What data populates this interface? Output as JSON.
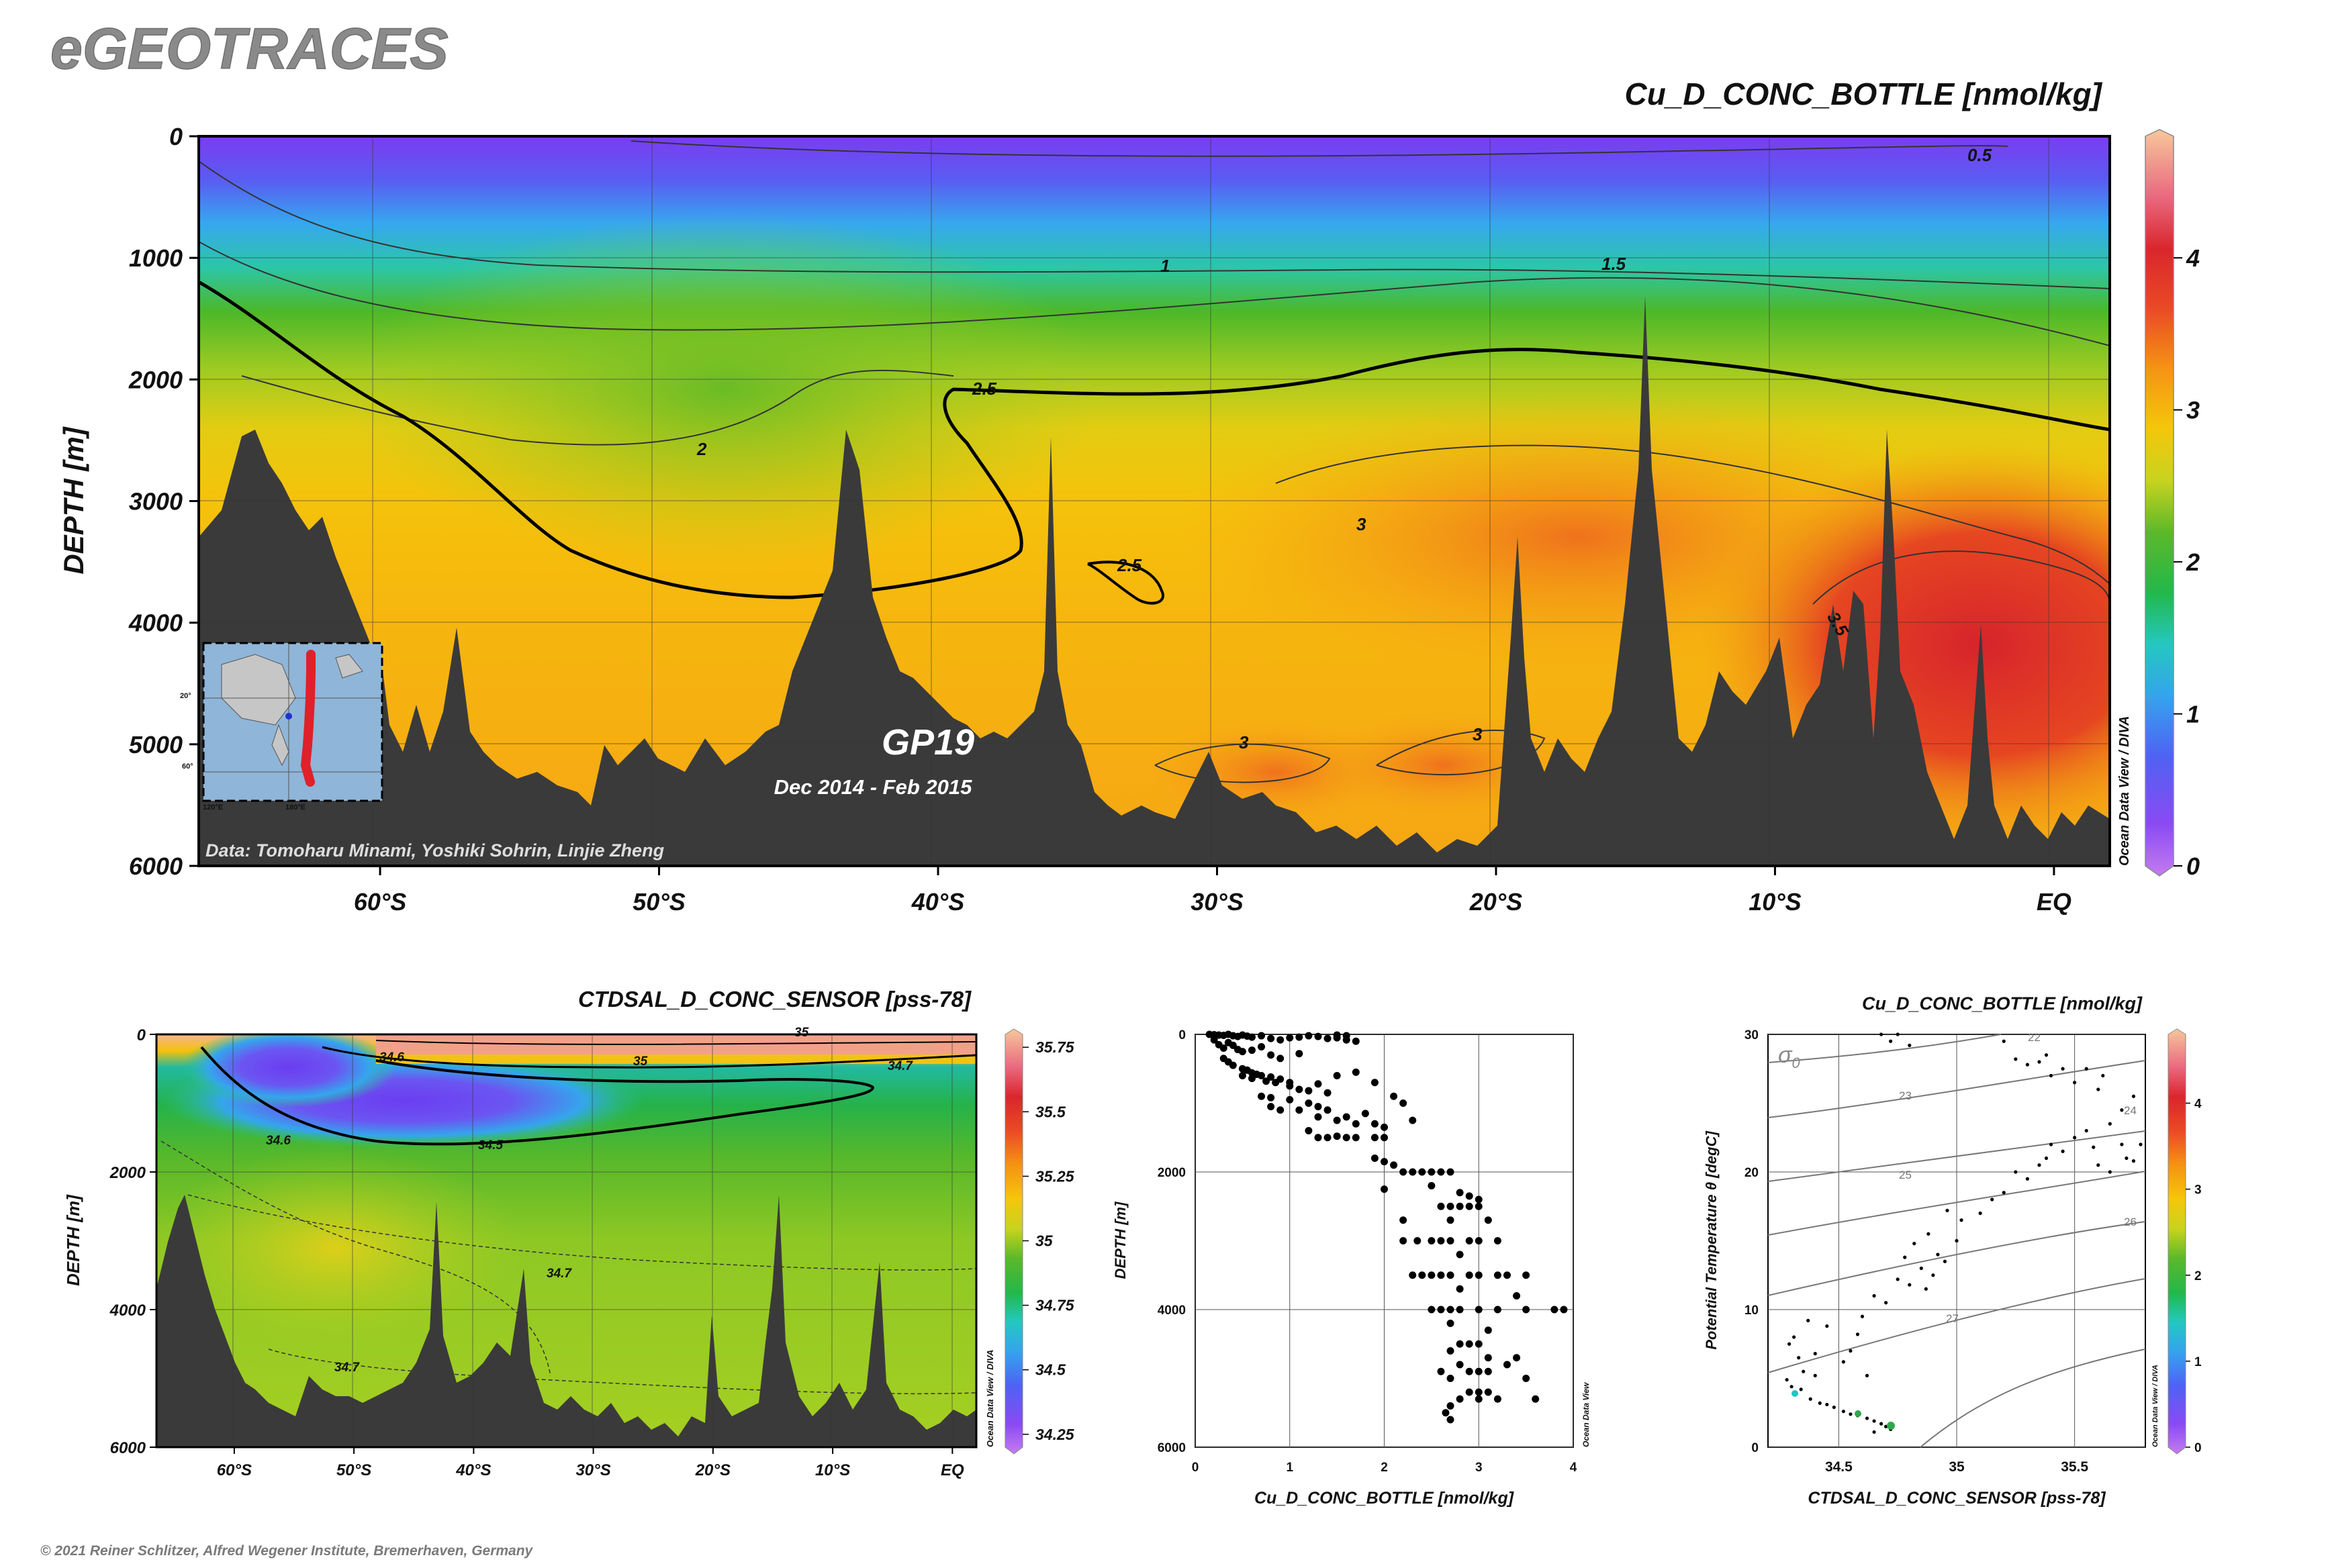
{
  "logo_text": "eGEOTRACES",
  "copyright": "© 2021 Reiner Schlitzer, Alfred Wegener Institute, Bremerhaven, Germany",
  "odv_label": "Ocean Data View / DIVA",
  "odv_label_short": "Ocean Data View",
  "colorscale": [
    "#c47cf0",
    "#8a4af2",
    "#5b5cf2",
    "#3d8ef5",
    "#27c4e8",
    "#22c98e",
    "#2fb52a",
    "#7ccb2a",
    "#d9d21e",
    "#f5c70b",
    "#f89a14",
    "#ee5a23",
    "#d9262d",
    "#e9697f",
    "#f3a08c",
    "#f7c79b"
  ],
  "chart_data": [
    {
      "type": "heatmap",
      "title": "Cu_D_CONC_BOTTLE [nmol/kg]",
      "ylabel": "DEPTH [m]",
      "xlabel": "",
      "x_ticks": [
        "60°S",
        "50°S",
        "40°S",
        "30°S",
        "20°S",
        "10°S",
        "EQ"
      ],
      "x_tick_values": [
        -60,
        -50,
        -40,
        -30,
        -20,
        -10,
        0
      ],
      "xlim": [
        -66.5,
        2
      ],
      "y_ticks": [
        "0",
        "1000",
        "2000",
        "3000",
        "4000",
        "5000",
        "6000"
      ],
      "ylim": [
        0,
        6000
      ],
      "colorbar_ticks": [
        "0",
        "1",
        "2",
        "3",
        "4"
      ],
      "colorbar_range": [
        0,
        4.8
      ],
      "contour_labels": [
        "0.5",
        "1",
        "1.5",
        "2",
        "2.5",
        "2.5",
        "3",
        "3",
        "3",
        "3.5"
      ],
      "section_label": "GP19",
      "section_dates": "Dec 2014 - Feb 2015",
      "data_credit": "Data: Tomoharu Minami, Yoshiki Sohrin, Linjie Zheng",
      "inset_map_labels": [
        "20°",
        "60°",
        "120°E",
        "180°E"
      ]
    },
    {
      "type": "heatmap",
      "title": "CTDSAL_D_CONC_SENSOR [pss-78]",
      "ylabel": "DEPTH [m]",
      "x_ticks": [
        "60°S",
        "50°S",
        "40°S",
        "30°S",
        "20°S",
        "10°S",
        "EQ"
      ],
      "x_tick_values": [
        -60,
        -50,
        -40,
        -30,
        -20,
        -10,
        0
      ],
      "xlim": [
        -66.5,
        2
      ],
      "y_ticks": [
        "0",
        "2000",
        "4000",
        "6000"
      ],
      "ylim": [
        0,
        6000
      ],
      "colorbar_ticks": [
        "34.25",
        "34.5",
        "34.75",
        "35",
        "35.25",
        "35.5",
        "35.75"
      ],
      "colorbar_range": [
        34.2,
        35.8
      ],
      "contour_labels": [
        "34.6",
        "34.5",
        "34.6",
        "34.7",
        "34.7",
        "35",
        "34.7",
        "35"
      ]
    },
    {
      "type": "scatter",
      "xlabel": "Cu_D_CONC_BOTTLE [nmol/kg]",
      "ylabel": "DEPTH [m]",
      "x_ticks": [
        "0",
        "1",
        "2",
        "3",
        "4"
      ],
      "y_ticks": [
        "0",
        "2000",
        "4000",
        "6000"
      ],
      "xlim": [
        0,
        4
      ],
      "ylim": [
        0,
        6000
      ],
      "points": [
        [
          0.15,
          0
        ],
        [
          0.2,
          5
        ],
        [
          0.25,
          10
        ],
        [
          0.3,
          15
        ],
        [
          0.35,
          0
        ],
        [
          0.4,
          20
        ],
        [
          0.45,
          30
        ],
        [
          0.5,
          10
        ],
        [
          0.55,
          25
        ],
        [
          0.6,
          40
        ],
        [
          0.7,
          20
        ],
        [
          0.8,
          60
        ],
        [
          0.9,
          80
        ],
        [
          1.0,
          50
        ],
        [
          1.1,
          40
        ],
        [
          1.2,
          20
        ],
        [
          1.3,
          30
        ],
        [
          1.4,
          60
        ],
        [
          1.5,
          50
        ],
        [
          1.6,
          80
        ],
        [
          1.7,
          100
        ],
        [
          1.5,
          10
        ],
        [
          1.6,
          20
        ],
        [
          0.2,
          80
        ],
        [
          0.25,
          150
        ],
        [
          0.3,
          200
        ],
        [
          0.35,
          120
        ],
        [
          0.4,
          160
        ],
        [
          0.45,
          220
        ],
        [
          0.5,
          250
        ],
        [
          0.6,
          230
        ],
        [
          0.7,
          180
        ],
        [
          0.8,
          300
        ],
        [
          0.9,
          350
        ],
        [
          1.1,
          280
        ],
        [
          0.3,
          350
        ],
        [
          0.35,
          400
        ],
        [
          0.4,
          450
        ],
        [
          0.5,
          500
        ],
        [
          0.55,
          520
        ],
        [
          0.6,
          560
        ],
        [
          0.65,
          580
        ],
        [
          0.7,
          600
        ],
        [
          0.8,
          620
        ],
        [
          0.9,
          650
        ],
        [
          1.0,
          700
        ],
        [
          1.3,
          720
        ],
        [
          1.5,
          600
        ],
        [
          1.7,
          550
        ],
        [
          1.9,
          700
        ],
        [
          2.1,
          900
        ],
        [
          2.2,
          1000
        ],
        [
          0.5,
          600
        ],
        [
          0.6,
          640
        ],
        [
          0.75,
          680
        ],
        [
          0.85,
          700
        ],
        [
          1.0,
          750
        ],
        [
          1.1,
          800
        ],
        [
          1.2,
          820
        ],
        [
          1.4,
          850
        ],
        [
          0.7,
          900
        ],
        [
          0.8,
          920
        ],
        [
          1.0,
          950
        ],
        [
          1.2,
          1000
        ],
        [
          1.3,
          1050
        ],
        [
          1.4,
          1100
        ],
        [
          1.6,
          1200
        ],
        [
          1.8,
          1150
        ],
        [
          1.9,
          1300
        ],
        [
          0.8,
          1050
        ],
        [
          0.9,
          1100
        ],
        [
          1.1,
          1100
        ],
        [
          1.3,
          1200
        ],
        [
          1.5,
          1250
        ],
        [
          1.7,
          1300
        ],
        [
          2.0,
          1350
        ],
        [
          2.3,
          1250
        ],
        [
          1.3,
          1500
        ],
        [
          1.4,
          1500
        ],
        [
          1.6,
          1500
        ],
        [
          1.7,
          1500
        ],
        [
          1.9,
          1500
        ],
        [
          2.0,
          1500
        ],
        [
          1.2,
          1400
        ],
        [
          1.5,
          1480
        ],
        [
          1.9,
          1800
        ],
        [
          2.0,
          1850
        ],
        [
          2.1,
          1900
        ],
        [
          2.2,
          2000
        ],
        [
          2.3,
          2000
        ],
        [
          2.4,
          2000
        ],
        [
          2.5,
          2000
        ],
        [
          2.6,
          2000
        ],
        [
          2.7,
          2000
        ],
        [
          2.5,
          2200
        ],
        [
          2.0,
          2250
        ],
        [
          2.8,
          2300
        ],
        [
          2.9,
          2350
        ],
        [
          3.0,
          2400
        ],
        [
          2.6,
          2500
        ],
        [
          2.7,
          2500
        ],
        [
          2.8,
          2500
        ],
        [
          2.9,
          2500
        ],
        [
          3.0,
          2500
        ],
        [
          2.7,
          2700
        ],
        [
          2.2,
          2700
        ],
        [
          3.1,
          2700
        ],
        [
          2.2,
          3000
        ],
        [
          2.35,
          3000
        ],
        [
          2.5,
          3000
        ],
        [
          2.6,
          3000
        ],
        [
          2.7,
          3000
        ],
        [
          2.9,
          3000
        ],
        [
          3.0,
          3000
        ],
        [
          3.2,
          3000
        ],
        [
          2.8,
          3200
        ],
        [
          2.3,
          3500
        ],
        [
          2.4,
          3500
        ],
        [
          2.5,
          3500
        ],
        [
          2.6,
          3500
        ],
        [
          2.7,
          3500
        ],
        [
          2.9,
          3500
        ],
        [
          3.0,
          3500
        ],
        [
          3.2,
          3500
        ],
        [
          3.3,
          3500
        ],
        [
          3.5,
          3500
        ],
        [
          2.8,
          3700
        ],
        [
          3.4,
          3800
        ],
        [
          2.5,
          4000
        ],
        [
          2.6,
          4000
        ],
        [
          2.7,
          4000
        ],
        [
          2.8,
          4000
        ],
        [
          3.0,
          4000
        ],
        [
          3.2,
          4000
        ],
        [
          3.5,
          4000
        ],
        [
          3.8,
          4000
        ],
        [
          3.9,
          4000
        ],
        [
          2.7,
          4200
        ],
        [
          3.1,
          4300
        ],
        [
          2.8,
          4500
        ],
        [
          2.9,
          4500
        ],
        [
          3.0,
          4500
        ],
        [
          2.7,
          4600
        ],
        [
          3.1,
          4700
        ],
        [
          3.4,
          4700
        ],
        [
          2.8,
          4800
        ],
        [
          3.3,
          4800
        ],
        [
          2.6,
          4900
        ],
        [
          2.9,
          4900
        ],
        [
          3.0,
          4900
        ],
        [
          3.1,
          4900
        ],
        [
          2.7,
          5000
        ],
        [
          3.5,
          5000
        ],
        [
          2.9,
          5200
        ],
        [
          3.0,
          5200
        ],
        [
          3.1,
          5200
        ],
        [
          2.8,
          5300
        ],
        [
          3.0,
          5300
        ],
        [
          3.2,
          5300
        ],
        [
          2.7,
          5400
        ],
        [
          3.6,
          5300
        ],
        [
          2.65,
          5500
        ],
        [
          2.7,
          5600
        ]
      ]
    },
    {
      "type": "scatter",
      "title": "Cu_D_CONC_BOTTLE [nmol/kg]",
      "xlabel": "CTDSAL_D_CONC_SENSOR [pss-78]",
      "ylabel": "Potential Temperature θ [degC]",
      "x_ticks": [
        "34.5",
        "35",
        "35.5"
      ],
      "y_ticks": [
        "0",
        "10",
        "20",
        "30"
      ],
      "xlim": [
        34.2,
        35.8
      ],
      "ylim": [
        0,
        30
      ],
      "isopycnal_symbol": "σ",
      "isopycnal_sub": "0",
      "isopycnal_labels": [
        "22",
        "23",
        "24",
        "25",
        "26",
        "27"
      ],
      "colorbar_ticks": [
        "0",
        "1",
        "2",
        "3",
        "4"
      ],
      "colorbar_range": [
        0,
        4.8
      ],
      "points": [
        [
          34.31,
          8
        ],
        [
          34.29,
          7.5
        ],
        [
          34.33,
          6.5
        ],
        [
          34.35,
          5.5
        ],
        [
          34.4,
          5.2
        ],
        [
          34.28,
          4.9
        ],
        [
          34.3,
          4.4
        ],
        [
          34.34,
          4.2
        ],
        [
          34.32,
          3.9
        ],
        [
          34.38,
          3.5
        ],
        [
          34.42,
          3.2
        ],
        [
          34.45,
          3.1
        ],
        [
          34.48,
          2.9
        ],
        [
          34.52,
          2.6
        ],
        [
          34.55,
          2.4
        ],
        [
          34.58,
          2.3
        ],
        [
          34.62,
          2.1
        ],
        [
          34.65,
          1.9
        ],
        [
          34.68,
          1.7
        ],
        [
          34.7,
          1.5
        ],
        [
          34.72,
          1.3
        ],
        [
          34.65,
          1.1
        ],
        [
          34.6,
          9.5
        ],
        [
          34.58,
          8.2
        ],
        [
          34.55,
          7.0
        ],
        [
          34.52,
          6.2
        ],
        [
          34.62,
          5.2
        ],
        [
          34.45,
          8.8
        ],
        [
          34.4,
          6.8
        ],
        [
          34.37,
          9.2
        ],
        [
          34.65,
          11
        ],
        [
          34.7,
          10.5
        ],
        [
          34.75,
          12.2
        ],
        [
          34.8,
          11.8
        ],
        [
          34.85,
          13
        ],
        [
          34.9,
          12.5
        ],
        [
          34.92,
          14
        ],
        [
          34.95,
          13.5
        ],
        [
          35,
          15
        ],
        [
          35.02,
          16.5
        ],
        [
          34.96,
          17.2
        ],
        [
          35.1,
          17
        ],
        [
          35.15,
          18
        ],
        [
          35.2,
          18.5
        ],
        [
          35.25,
          20
        ],
        [
          35.3,
          19.5
        ],
        [
          35.35,
          20.5
        ],
        [
          35.38,
          21
        ],
        [
          35.4,
          22
        ],
        [
          35.45,
          21.5
        ],
        [
          35.5,
          22.5
        ],
        [
          35.55,
          23
        ],
        [
          35.58,
          21.8
        ],
        [
          35.6,
          20.5
        ],
        [
          35.65,
          20
        ],
        [
          35.7,
          22
        ],
        [
          35.72,
          21
        ],
        [
          35.75,
          20.8
        ],
        [
          35.65,
          23.5
        ],
        [
          35.7,
          24.5
        ],
        [
          35.75,
          25.5
        ],
        [
          35.78,
          22
        ],
        [
          35.6,
          26
        ],
        [
          35.5,
          26.5
        ],
        [
          35.55,
          27.5
        ],
        [
          35.62,
          27
        ],
        [
          35.35,
          28
        ],
        [
          35.4,
          27
        ],
        [
          35.45,
          27.5
        ],
        [
          35.3,
          27.8
        ],
        [
          35.38,
          28.5
        ],
        [
          35.2,
          29.5
        ],
        [
          35.25,
          28.2
        ],
        [
          34.75,
          30
        ],
        [
          34.72,
          29.5
        ],
        [
          34.8,
          29.2
        ],
        [
          34.68,
          30
        ],
        [
          34.88,
          15.5
        ],
        [
          34.82,
          14.8
        ],
        [
          34.78,
          13.8
        ],
        [
          34.87,
          11.5
        ]
      ]
    }
  ]
}
